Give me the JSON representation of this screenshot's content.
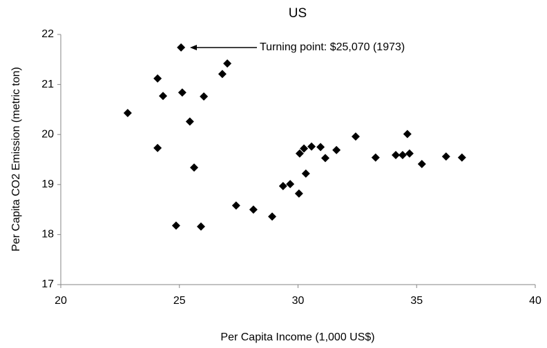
{
  "chart_data": {
    "type": "scatter",
    "title": "US",
    "x_label": "Per Capita Income (1,000 US$)",
    "y_label": "Per Capita CO2 Emission (metric ton)",
    "annotation": "Turning point: $25,070 (1973)",
    "series": [
      {
        "color": "#000000",
        "x": [
          22.82,
          24.08,
          24.31,
          24.08,
          25.07,
          25.12,
          25.44,
          25.62,
          26.03,
          24.86,
          25.91,
          26.81,
          27.02,
          27.39,
          28.12,
          28.91,
          29.37,
          29.67,
          30.04,
          30.07,
          30.25,
          30.33,
          30.57,
          30.95,
          31.15,
          31.62,
          32.43,
          33.27,
          34.12,
          34.41,
          34.61,
          34.7,
          35.22,
          36.24,
          36.91
        ],
        "values": [
          20.43,
          21.12,
          20.77,
          19.73,
          21.74,
          20.84,
          20.26,
          19.34,
          20.76,
          18.18,
          18.16,
          21.21,
          21.42,
          18.58,
          18.5,
          18.36,
          18.97,
          19.01,
          18.82,
          19.62,
          19.72,
          19.22,
          19.76,
          19.75,
          19.53,
          19.69,
          19.96,
          19.54,
          19.59,
          19.59,
          20.01,
          19.62,
          19.41,
          19.56,
          19.54
        ]
      }
    ],
    "xlim": [
      20,
      40
    ],
    "xticks": [
      20,
      25,
      30,
      35,
      40
    ],
    "ylim": [
      17,
      22
    ],
    "yticks": [
      17,
      18,
      19,
      20,
      21,
      22
    ]
  }
}
